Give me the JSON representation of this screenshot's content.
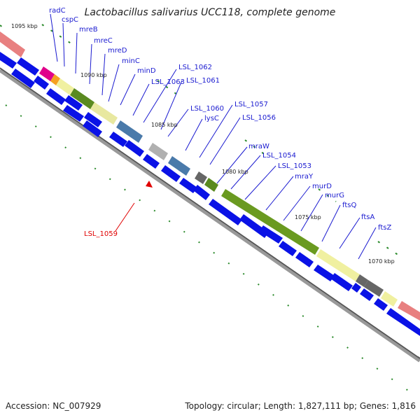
{
  "title": "Lactobacillus salivarius UCC118, complete genome",
  "footer": {
    "accession": "Accession: NC_007929",
    "topology": "Topology: circular; Length: 1,827,111 bp; Genes: 1,816"
  },
  "colors": {
    "cds_arrow": "#0a12e6",
    "label_blue": "#1a1ad0",
    "label_red": "#e00000",
    "tick_green": "#2a8a2a",
    "backbone": "#888888"
  },
  "scale_ticks": [
    "1095 kbp",
    "1090 kbp",
    "1085 kbp",
    "1080 kbp",
    "1075 kbp",
    "1070 kbp"
  ],
  "gene_labels": [
    "radC",
    "cspC",
    "mreB",
    "mreC",
    "mreD",
    "minC",
    "minD",
    "LSL_1063",
    "LSL_1062",
    "LSL_1061",
    "LSL_1060",
    "lysC",
    "LSL_1057",
    "LSL_1056",
    "mraW",
    "LSL_1054",
    "LSL_1053",
    "mraY",
    "murD",
    "murG",
    "ftsQ",
    "ftsA",
    "ftsZ"
  ],
  "highlighted_label": "LSL_1059"
}
